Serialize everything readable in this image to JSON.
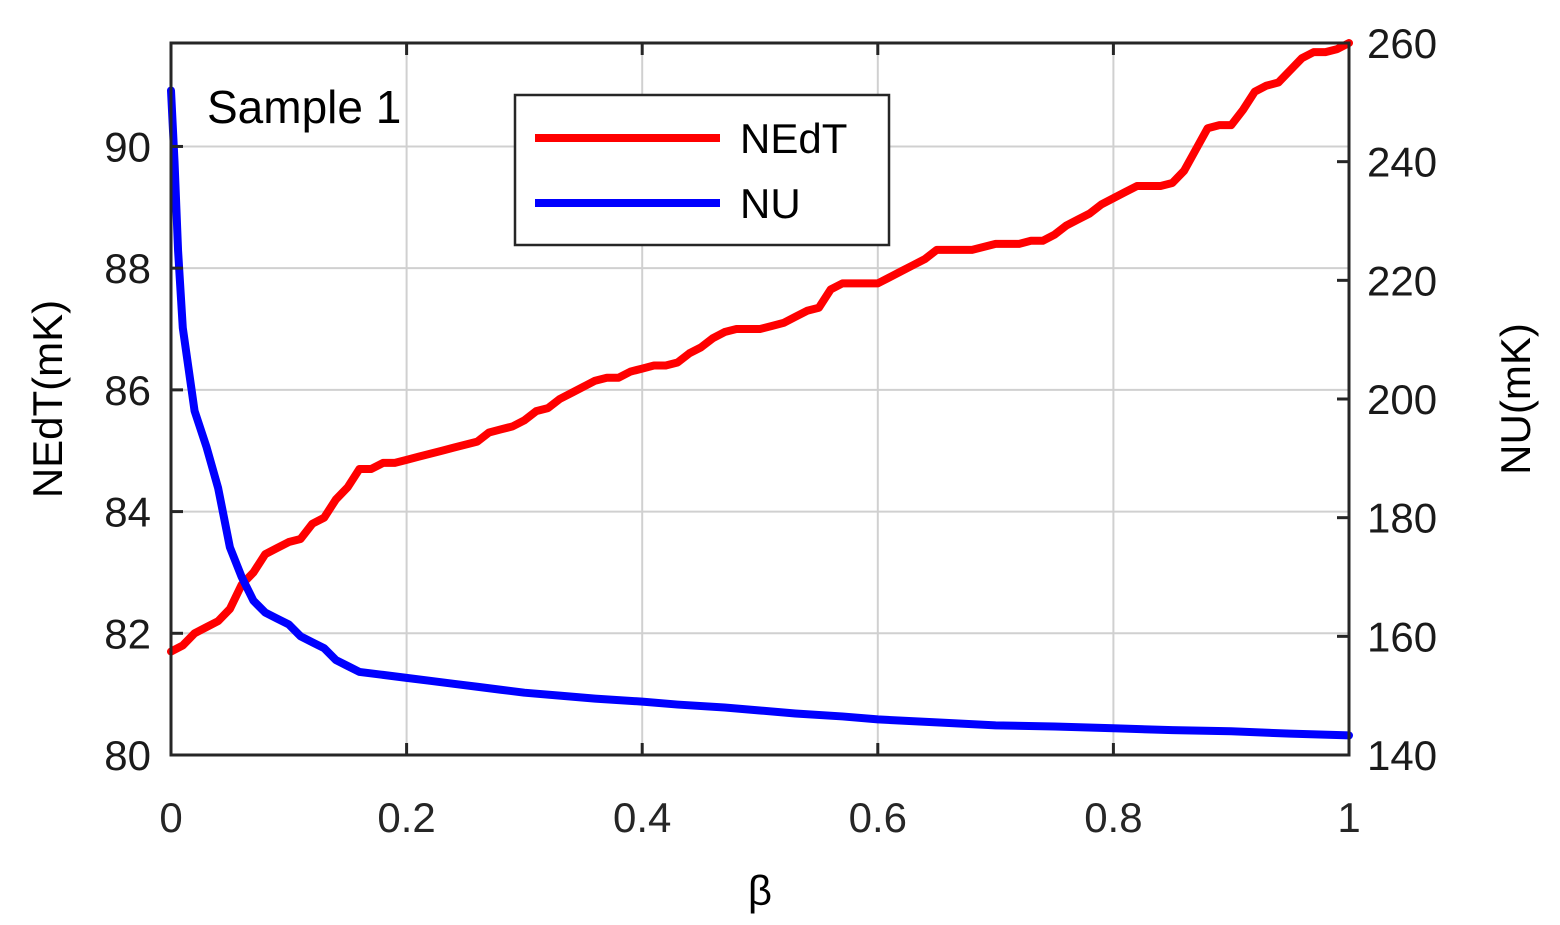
{
  "chart_data": {
    "type": "line",
    "annotation": "Sample 1",
    "xlabel": "β",
    "ylabel_left": "NEdT(mK)",
    "ylabel_right": "NU(mK)",
    "xlim": [
      0,
      1
    ],
    "ylim_left": [
      80,
      91.7
    ],
    "ylim_right": [
      140,
      260
    ],
    "x_ticks": [
      "0",
      "0.2",
      "0.4",
      "0.6",
      "0.8",
      "1"
    ],
    "y_ticks_left": [
      "80",
      "82",
      "84",
      "86",
      "88",
      "90"
    ],
    "y_ticks_right": [
      "140",
      "160",
      "180",
      "200",
      "220",
      "240",
      "260"
    ],
    "grid": true,
    "legend_position": "top-center",
    "series": [
      {
        "name": "NEdT",
        "axis": "left",
        "color": "#ff0000",
        "x": [
          0,
          0.01,
          0.02,
          0.03,
          0.04,
          0.05,
          0.06,
          0.07,
          0.08,
          0.09,
          0.1,
          0.11,
          0.12,
          0.13,
          0.14,
          0.15,
          0.16,
          0.17,
          0.18,
          0.19,
          0.2,
          0.21,
          0.22,
          0.23,
          0.24,
          0.25,
          0.26,
          0.27,
          0.28,
          0.29,
          0.3,
          0.31,
          0.32,
          0.33,
          0.34,
          0.35,
          0.36,
          0.37,
          0.38,
          0.39,
          0.4,
          0.41,
          0.42,
          0.43,
          0.44,
          0.45,
          0.46,
          0.47,
          0.48,
          0.49,
          0.5,
          0.51,
          0.52,
          0.53,
          0.54,
          0.55,
          0.56,
          0.57,
          0.58,
          0.59,
          0.6,
          0.61,
          0.62,
          0.63,
          0.64,
          0.65,
          0.66,
          0.67,
          0.68,
          0.69,
          0.7,
          0.71,
          0.72,
          0.73,
          0.74,
          0.75,
          0.76,
          0.77,
          0.78,
          0.79,
          0.8,
          0.81,
          0.82,
          0.83,
          0.84,
          0.85,
          0.86,
          0.87,
          0.88,
          0.89,
          0.9,
          0.91,
          0.92,
          0.93,
          0.94,
          0.95,
          0.96,
          0.97,
          0.98,
          0.99,
          1
        ],
        "values": [
          81.7,
          81.8,
          82.0,
          82.1,
          82.2,
          82.4,
          82.8,
          83.0,
          83.3,
          83.4,
          83.5,
          83.55,
          83.8,
          83.9,
          84.2,
          84.4,
          84.7,
          84.7,
          84.8,
          84.8,
          84.85,
          84.9,
          84.95,
          85.0,
          85.05,
          85.1,
          85.15,
          85.3,
          85.35,
          85.4,
          85.5,
          85.65,
          85.7,
          85.85,
          85.95,
          86.05,
          86.15,
          86.2,
          86.2,
          86.3,
          86.35,
          86.4,
          86.4,
          86.45,
          86.6,
          86.7,
          86.85,
          86.95,
          87.0,
          87.0,
          87.0,
          87.05,
          87.1,
          87.2,
          87.3,
          87.35,
          87.65,
          87.75,
          87.75,
          87.75,
          87.75,
          87.85,
          87.95,
          88.05,
          88.15,
          88.3,
          88.3,
          88.3,
          88.3,
          88.35,
          88.4,
          88.4,
          88.4,
          88.45,
          88.45,
          88.55,
          88.7,
          88.8,
          88.9,
          89.05,
          89.15,
          89.25,
          89.35,
          89.35,
          89.35,
          89.4,
          89.6,
          89.95,
          90.3,
          90.35,
          90.35,
          90.6,
          90.9,
          91.0,
          91.05,
          91.25,
          91.45,
          91.55,
          91.55,
          91.6,
          91.7
        ]
      },
      {
        "name": "NU",
        "axis": "right",
        "color": "#0000ff",
        "x": [
          0,
          0.003,
          0.006,
          0.01,
          0.015,
          0.02,
          0.03,
          0.04,
          0.05,
          0.06,
          0.07,
          0.08,
          0.09,
          0.1,
          0.11,
          0.12,
          0.13,
          0.14,
          0.15,
          0.16,
          0.18,
          0.2,
          0.22,
          0.24,
          0.26,
          0.28,
          0.3,
          0.33,
          0.36,
          0.4,
          0.43,
          0.47,
          0.5,
          0.53,
          0.57,
          0.6,
          0.65,
          0.7,
          0.75,
          0.8,
          0.85,
          0.9,
          0.95,
          1.0
        ],
        "values": [
          252,
          240,
          225,
          212,
          205,
          198,
          192,
          185,
          175,
          170,
          166,
          164,
          163,
          162,
          160,
          159,
          158,
          156,
          155,
          154,
          153.5,
          153,
          152.5,
          152,
          151.5,
          151,
          150.5,
          150,
          149.5,
          149,
          148.5,
          148,
          147.5,
          147,
          146.5,
          146,
          145.5,
          145,
          144.8,
          144.5,
          144.2,
          144,
          143.6,
          143.3
        ]
      }
    ]
  }
}
